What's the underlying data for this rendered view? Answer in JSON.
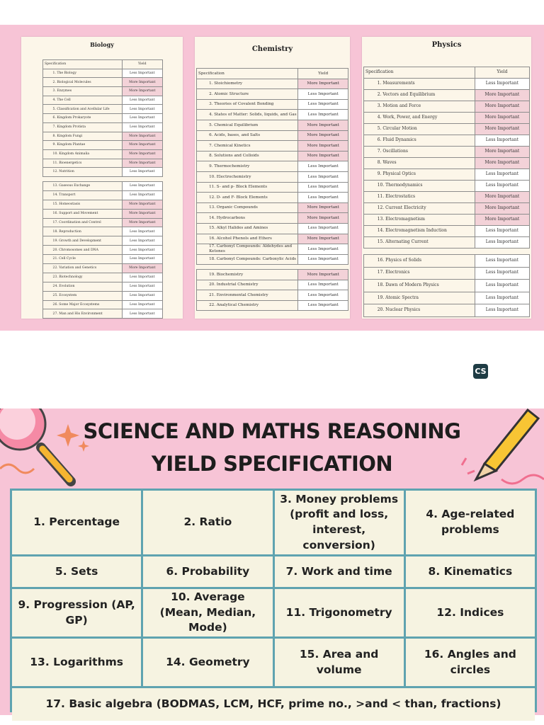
{
  "subjects": [
    {
      "title": "Biology",
      "header": [
        "Specification",
        "Yield"
      ],
      "groups": [
        [
          [
            "1. The Biology",
            "Less Important"
          ],
          [
            "2. Biological Molecules",
            "More Important"
          ],
          [
            "3. Enzymes",
            "More Important"
          ],
          [
            "4. The Cell",
            "Less Important"
          ],
          [
            "5. Classification and Acellular Life",
            "Less Important"
          ],
          [
            "6. Kingdom Prokaryote",
            "Less Important"
          ],
          [
            "7. Kingdom Protista",
            "Less Important"
          ],
          [
            "8. Kingdom Fungi",
            "More Important"
          ],
          [
            "9. Kingdom Plantae",
            "More Important"
          ],
          [
            "10. Kingdom Animalia",
            "More Important"
          ],
          [
            "11. Bioenergetics",
            "More Important"
          ],
          [
            "12. Nutrition",
            "Less Important"
          ]
        ],
        [
          [
            "13. Gaseous Exchange",
            "Less Important"
          ],
          [
            "14. Transport",
            "Less Important"
          ],
          [
            "15. Homeostasis",
            "More Important"
          ],
          [
            "16. Support and Movement",
            "More Important"
          ],
          [
            "17. Coordination and Control",
            "More Important"
          ],
          [
            "18. Reproduction",
            "Less Important"
          ],
          [
            "19. Growth and Development",
            "Less Important"
          ],
          [
            "20. Chromosomes and DNA",
            "Less Important"
          ],
          [
            "21. Cell Cycle",
            "Less Important"
          ],
          [
            "22. Variation and Genetics",
            "More Important"
          ],
          [
            "23. Biotechnology",
            "Less Important"
          ],
          [
            "24. Evolution",
            "Less Important"
          ],
          [
            "25. Ecosystem",
            "Less Important"
          ],
          [
            "26. Some Major Ecosystems",
            "Less Important"
          ],
          [
            "27. Man and His Environment",
            "Less Important"
          ]
        ]
      ]
    },
    {
      "title": "Chemistry",
      "header": [
        "Specification",
        "Yield"
      ],
      "groups": [
        [
          [
            "1. Stoichiometry",
            "More Important"
          ],
          [
            "2. Atomic Structure",
            "Less Important"
          ],
          [
            "3. Theories of Covalent Bonding",
            "Less Important"
          ],
          [
            "4. States of Matter: Solids, liquids, and Gas",
            "Less Important"
          ],
          [
            "5. Chemical Equilibrium",
            "More Important"
          ],
          [
            "6. Acids, bases, and Salts",
            "More Important"
          ],
          [
            "7. Chemical Kinetics",
            "More Important"
          ],
          [
            "8. Solutions and Colloids",
            "More Important"
          ],
          [
            "9. Thermochemistry",
            "Less Important"
          ],
          [
            "10. Electrochemistry",
            "Less Important"
          ],
          [
            "11. S- and p- Block Elements",
            "Less Important"
          ],
          [
            "12. D- and F- Block Elements",
            "Less Important"
          ],
          [
            "13. Organic Compounds",
            "More Important"
          ],
          [
            "14. Hydrocarbons",
            "More Important"
          ],
          [
            "15. Alkyl Halides and Amines",
            "Less Important"
          ],
          [
            "16. Alcohol Phenols and Ethers",
            "More Important"
          ],
          [
            "17. Carbonyl Compounds: Aldehydes and Ketones",
            "Less Important"
          ],
          [
            "18. Carbonyl Compounds: Carboxylic Acids",
            "Less Important"
          ]
        ],
        [
          [
            "19. Biochemistry",
            "More Important"
          ],
          [
            "20. Industrial Chemistry",
            "Less Important"
          ],
          [
            "21. Environmental Chemistry",
            "Less Important"
          ],
          [
            "22. Analytical Chemistry",
            "Less Important"
          ]
        ]
      ]
    },
    {
      "title": "Physics",
      "header": [
        "Specification",
        "Yield"
      ],
      "groups": [
        [
          [
            "1. Measurements",
            "Less Important"
          ],
          [
            "2. Vectors and Equilibrium",
            "More Important"
          ],
          [
            "3. Motion and Force",
            "More Important"
          ],
          [
            "4. Work, Power, and Energy",
            "More Important"
          ],
          [
            "5. Circular Motion",
            "More Important"
          ],
          [
            "6. Fluid Dynamics",
            "Less Important"
          ],
          [
            "7. Oscillations",
            "More Important"
          ],
          [
            "8. Waves",
            "More Important"
          ],
          [
            "9. Physical Optics",
            "Less Important"
          ],
          [
            "10. Thermodynamics",
            "Less Important"
          ],
          [
            "11. Electrostatics",
            "More Important"
          ],
          [
            "12. Current Electricity",
            "More Important"
          ],
          [
            "13. Electromagnetism",
            "More Important"
          ],
          [
            "14. Electromagnetism Induction",
            "Less Important"
          ],
          [
            "15. Alternating Current",
            "Less Important"
          ]
        ],
        [
          [
            "16. Physics of Solids",
            "Less Important"
          ],
          [
            "17. Electronics",
            "Less Important"
          ],
          [
            "18. Dawn of Modern Physics",
            "Less Important"
          ],
          [
            "19. Atomic Spectra",
            "Less Important"
          ],
          [
            "20. Nuclear Physics",
            "Less Important"
          ]
        ]
      ]
    }
  ],
  "yield_colors": {
    "Less Important": "#ffffff",
    "More Important": "#f3d2d8"
  },
  "logo": "CS",
  "maths": {
    "title_lines": [
      "SCIENCE AND MATHS REASONING",
      "YIELD SPECIFICATION"
    ],
    "cells": [
      "1. Percentage",
      "2. Ratio",
      "3. Money problems (profit and loss, interest, conversion)",
      "4. Age-related problems",
      "5. Sets",
      "6. Probability",
      "7. Work and time",
      "8. Kinematics",
      "9. Progression (AP, GP)",
      "10. Average (Mean, Median, Mode)",
      "11. Trigonometry",
      "12. Indices",
      "13. Logarithms",
      "14. Geometry",
      "15. Area and volume",
      "16. Angles and circles",
      "17. Basic algebra (BODMAS, LCM, HCF, prime no., >and < than, fractions)"
    ]
  }
}
